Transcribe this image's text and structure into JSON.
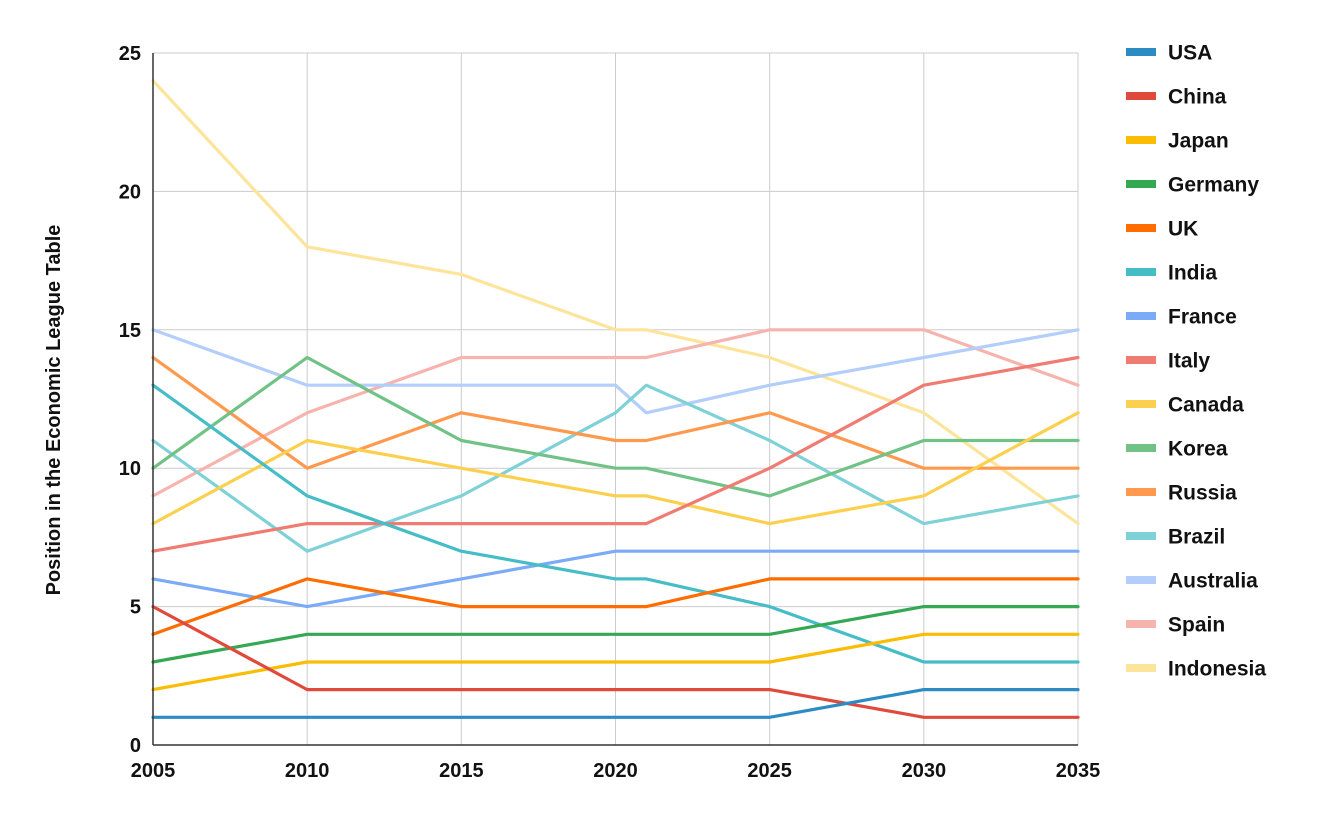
{
  "chart_data": {
    "type": "line",
    "title": "",
    "xlabel": "",
    "ylabel": "Position in the Economic League Table",
    "x": [
      2005,
      2010,
      2015,
      2020,
      2021,
      2025,
      2030,
      2035
    ],
    "x_ticks": [
      "2005",
      "2010",
      "2015",
      "2020",
      "2025",
      "2030",
      "2035"
    ],
    "y_ticks": [
      "0",
      "5",
      "10",
      "15",
      "20",
      "25"
    ],
    "xlim": [
      2005,
      2035
    ],
    "ylim": [
      0,
      25
    ],
    "grid": true,
    "legend_position": "right",
    "series": [
      {
        "name": "USA",
        "color": "#2b8cc4",
        "values": [
          1,
          1,
          1,
          1,
          1,
          1,
          2,
          2
        ]
      },
      {
        "name": "China",
        "color": "#e04a3c",
        "values": [
          5,
          2,
          2,
          2,
          2,
          2,
          1,
          1
        ]
      },
      {
        "name": "Japan",
        "color": "#fbbc04",
        "values": [
          2,
          3,
          3,
          3,
          3,
          3,
          4,
          4
        ]
      },
      {
        "name": "Germany",
        "color": "#34a853",
        "values": [
          3,
          4,
          4,
          4,
          4,
          4,
          5,
          5
        ]
      },
      {
        "name": "UK",
        "color": "#ff6d01",
        "values": [
          4,
          6,
          5,
          5,
          5,
          6,
          6,
          6
        ]
      },
      {
        "name": "India",
        "color": "#46bdc6",
        "values": [
          13,
          9,
          7,
          6,
          6,
          5,
          3,
          3
        ]
      },
      {
        "name": "France",
        "color": "#7baaf7",
        "values": [
          6,
          5,
          6,
          7,
          7,
          7,
          7,
          7
        ]
      },
      {
        "name": "Italy",
        "color": "#f07b72",
        "values": [
          7,
          8,
          8,
          8,
          8,
          10,
          13,
          14
        ]
      },
      {
        "name": "Canada",
        "color": "#fcd04f",
        "values": [
          8,
          11,
          10,
          9,
          9,
          8,
          9,
          12
        ]
      },
      {
        "name": "Korea",
        "color": "#71c287",
        "values": [
          10,
          14,
          11,
          10,
          10,
          9,
          11,
          11
        ]
      },
      {
        "name": "Russia",
        "color": "#ff994d",
        "values": [
          14,
          10,
          12,
          11,
          11,
          12,
          10,
          10
        ]
      },
      {
        "name": "Brazil",
        "color": "#7ed1d7",
        "values": [
          11,
          7,
          9,
          12,
          13,
          11,
          8,
          9
        ]
      },
      {
        "name": "Australia",
        "color": "#b3cefb",
        "values": [
          15,
          13,
          13,
          13,
          12,
          13,
          14,
          15
        ]
      },
      {
        "name": "Spain",
        "color": "#f7b4ae",
        "values": [
          9,
          12,
          14,
          14,
          14,
          15,
          15,
          13
        ]
      },
      {
        "name": "Indonesia",
        "color": "#fde49b",
        "values": [
          24,
          18,
          17,
          15,
          15,
          14,
          12,
          8
        ]
      }
    ]
  }
}
